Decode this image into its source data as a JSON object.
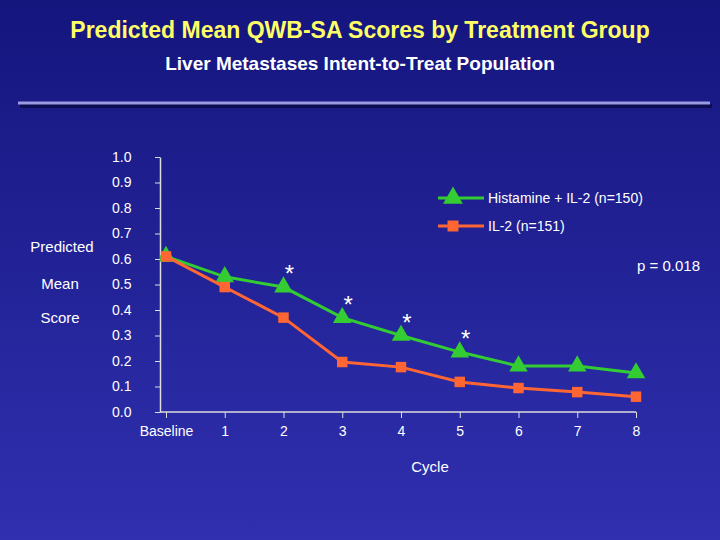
{
  "chart_data": {
    "type": "line",
    "title": "Predicted Mean QWB-SA Scores by Treatment Group",
    "subtitle": "Liver Metastases Intent-to-Treat Population",
    "y_label": [
      "Predicted",
      "Mean",
      "Score"
    ],
    "x_label": "Cycle",
    "categories": [
      "Baseline",
      "1",
      "2",
      "3",
      "4",
      "5",
      "6",
      "7",
      "8"
    ],
    "series": [
      {
        "name": "Histamine + IL-2 (n=150)",
        "color": "#33cc33",
        "marker": "triangle",
        "values": [
          0.61,
          0.53,
          0.49,
          0.37,
          0.3,
          0.235,
          0.18,
          0.18,
          0.153
        ]
      },
      {
        "name": "IL-2 (n=151)",
        "color": "#ff6633",
        "marker": "square",
        "values": [
          0.61,
          0.49,
          0.37,
          0.196,
          0.176,
          0.118,
          0.094,
          0.078,
          0.06
        ]
      }
    ],
    "ylim": [
      0,
      1
    ],
    "yticks": [
      {
        "value": 0,
        "label": "0.0"
      },
      0.1,
      0.2,
      0.3,
      0.4,
      0.5,
      0.6,
      0.7,
      0.8,
      0.9,
      {
        "value": 1,
        "label": "1.0"
      }
    ],
    "annotations": [
      {
        "text": "*",
        "category": "2"
      },
      {
        "text": "*",
        "category": "3"
      },
      {
        "text": "*",
        "category": "4"
      },
      {
        "text": "*",
        "category": "5"
      },
      {
        "text": "p = 0.018"
      }
    ],
    "legend": "top-right",
    "grid": false
  }
}
